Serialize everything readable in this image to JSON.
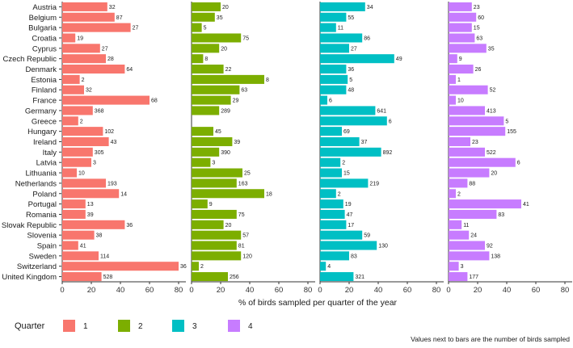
{
  "chart_data": {
    "type": "bar",
    "orientation": "horizontal",
    "facets": "quarter",
    "xlabel": "% of birds sampled per quarter of the year",
    "xlim": [
      0,
      85
    ],
    "xticks": [
      0,
      20,
      40,
      60,
      80
    ],
    "legend_title": "Quarter",
    "legend_position": "bottom-left",
    "footnote": "Values next to bars are the number of birds sampled",
    "categories": [
      "Austria",
      "Belgium",
      "Bulgaria",
      "Croatia",
      "Cyprus",
      "Czech Republic",
      "Denmark",
      "Estonia",
      "Finland",
      "France",
      "Germany",
      "Greece",
      "Hungary",
      "Ireland",
      "Italy",
      "Latvia",
      "Lithuania",
      "Netherlands",
      "Poland",
      "Portugal",
      "Romania",
      "Slovak Republic",
      "Slovenia",
      "Spain",
      "Sweden",
      "Switzerland",
      "United Kingdom"
    ],
    "series": [
      {
        "name": "1",
        "color": "#F8766D",
        "values": [
          31,
          36,
          47,
          9,
          26,
          30,
          43,
          12,
          15,
          60,
          21,
          11,
          28,
          32,
          21,
          20,
          10,
          30,
          39,
          16,
          16,
          43,
          22,
          11,
          25,
          80,
          27
        ],
        "labels": [
          "32",
          "87",
          "27",
          "19",
          "27",
          "28",
          "64",
          "2",
          "32",
          "68",
          "368",
          "2",
          "102",
          "43",
          "305",
          "3",
          "10",
          "193",
          "14",
          "13",
          "39",
          "36",
          "38",
          "41",
          "114",
          "36",
          "528"
        ]
      },
      {
        "name": "2",
        "color": "#7CAE00",
        "values": [
          20,
          16,
          7,
          34,
          19,
          8,
          22,
          50,
          33,
          27,
          19,
          null,
          15,
          28,
          19,
          13,
          35,
          31,
          50,
          11,
          31,
          22,
          34,
          31,
          34,
          5,
          25
        ],
        "labels": [
          "20",
          "35",
          "5",
          "75",
          "20",
          "8",
          "22",
          "8",
          "63",
          "29",
          "289",
          "",
          "45",
          "39",
          "390",
          "3",
          "25",
          "163",
          "18",
          "9",
          "75",
          "20",
          "57",
          "81",
          "120",
          "2",
          "256"
        ]
      },
      {
        "name": "3",
        "color": "#00BFC4",
        "values": [
          31,
          18,
          11,
          29,
          20,
          51,
          18,
          19,
          18,
          5,
          38,
          46,
          15,
          27,
          42,
          14,
          15,
          33,
          11,
          16,
          17,
          18,
          29,
          39,
          20,
          4,
          23
        ],
        "labels": [
          "34",
          "55",
          "11",
          "86",
          "27",
          "49",
          "36",
          "5",
          "48",
          "6",
          "641",
          "6",
          "69",
          "37",
          "892",
          "2",
          "15",
          "219",
          "2",
          "19",
          "47",
          "17",
          "59",
          "130",
          "83",
          "4",
          "321"
        ]
      },
      {
        "name": "4",
        "color": "#C77CFF",
        "values": [
          16,
          19,
          16,
          18,
          26,
          6,
          17,
          5,
          27,
          5,
          25,
          38,
          39,
          15,
          25,
          46,
          28,
          13,
          5,
          50,
          33,
          9,
          14,
          25,
          28,
          7,
          13
        ],
        "labels": [
          "23",
          "60",
          "15",
          "63",
          "35",
          "9",
          "26",
          "1",
          "52",
          "10",
          "413",
          "5",
          "155",
          "23",
          "522",
          "6",
          "20",
          "88",
          "2",
          "41",
          "83",
          "11",
          "24",
          "92",
          "138",
          "3",
          "177"
        ]
      }
    ]
  }
}
